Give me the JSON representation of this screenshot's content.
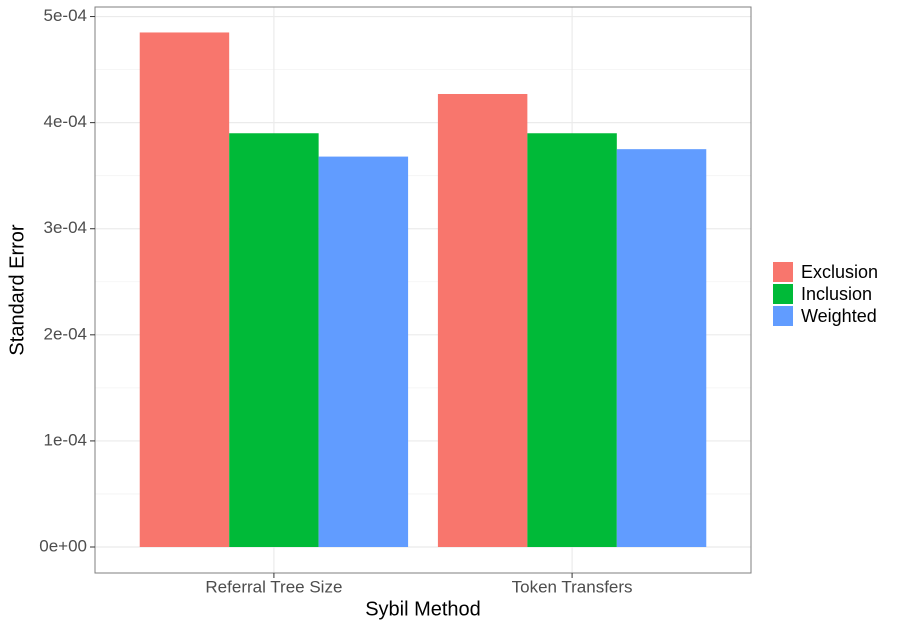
{
  "chart_data": {
    "type": "bar",
    "x_label": "Sybil Method",
    "y_label": "Standard Error",
    "categories": [
      "Referral Tree Size",
      "Token Transfers"
    ],
    "series": [
      {
        "name": "Exclusion",
        "color": "#f8766d",
        "values": [
          0.000485,
          0.000427
        ]
      },
      {
        "name": "Inclusion",
        "color": "#00ba38",
        "values": [
          0.00039,
          0.00039
        ]
      },
      {
        "name": "Weighted",
        "color": "#619cff",
        "values": [
          0.000368,
          0.000375
        ]
      }
    ],
    "ylim": [
      -2.45e-05,
      0.000509
    ],
    "yticks": [
      {
        "value": 0,
        "label": "0e+00"
      },
      {
        "value": 0.0001,
        "label": "1e-04"
      },
      {
        "value": 0.0002,
        "label": "2e-04"
      },
      {
        "value": 0.0003,
        "label": "3e-04"
      },
      {
        "value": 0.0004,
        "label": "4e-04"
      },
      {
        "value": 0.0005,
        "label": "5e-04"
      }
    ],
    "grid": true,
    "legend": "right"
  }
}
